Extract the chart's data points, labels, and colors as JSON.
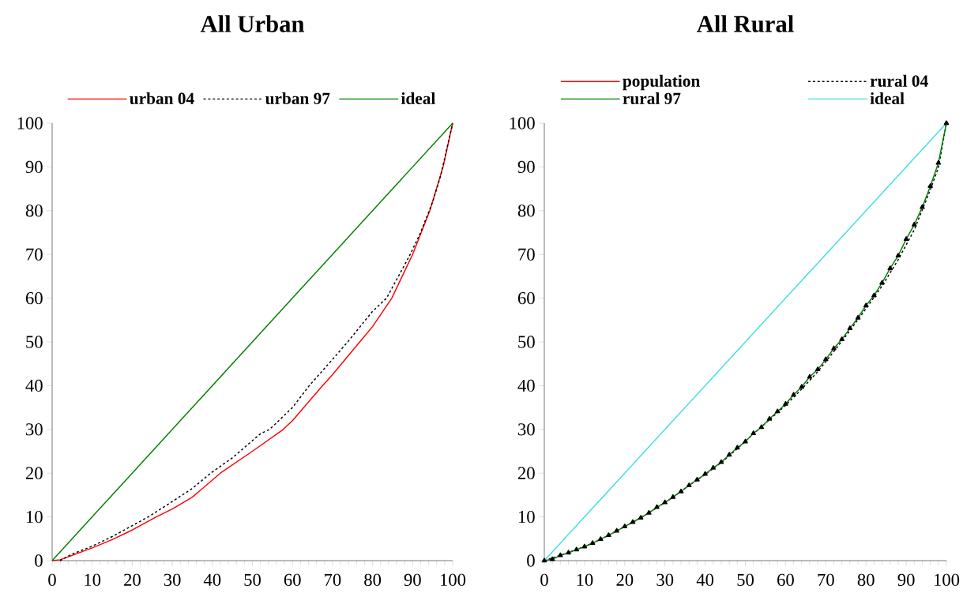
{
  "chart_data": [
    {
      "type": "line",
      "title": "All Urban",
      "legend": "top",
      "xlim": [
        0,
        100
      ],
      "ylim": [
        0,
        100
      ],
      "xticks": [
        0,
        10,
        20,
        30,
        40,
        50,
        60,
        70,
        80,
        90,
        100
      ],
      "yticks": [
        0,
        10,
        20,
        30,
        40,
        50,
        60,
        70,
        80,
        90,
        100
      ],
      "series": [
        {
          "name": "urban 04",
          "color": "#ff0000",
          "line_style": "solid",
          "x": [
            0,
            2,
            5,
            10,
            15,
            20,
            26,
            30,
            35,
            42,
            50,
            57.7,
            60,
            67.5,
            70,
            76.8,
            80,
            84.8,
            90,
            94.3,
            97.6,
            100
          ],
          "values": [
            0,
            0.2,
            1.2,
            2.9,
            4.8,
            7,
            10,
            11.8,
            14.5,
            20,
            25,
            30,
            32,
            40,
            42.5,
            50,
            53.5,
            60,
            70,
            80,
            90,
            100
          ]
        },
        {
          "name": "urban 97",
          "color": "#000000",
          "line_style": "dotted",
          "x": [
            2,
            5,
            10,
            15,
            20,
            24,
            30,
            35,
            39.6,
            45,
            52,
            54.3,
            60,
            64.2,
            70,
            73.8,
            80,
            83.5,
            89.4,
            92,
            95,
            97,
            100
          ],
          "values": [
            0,
            1.5,
            3.3,
            5.5,
            8,
            10,
            13.5,
            16.5,
            20,
            23.5,
            29,
            30,
            35,
            40,
            46,
            50,
            57,
            60,
            70,
            75,
            82,
            88,
            100
          ]
        },
        {
          "name": "ideal",
          "color": "#008000",
          "line_style": "solid",
          "x": [
            0,
            10,
            20,
            24,
            26,
            30,
            40,
            50,
            60,
            70,
            80,
            90,
            100
          ],
          "values": [
            0,
            10,
            20,
            24,
            26,
            30,
            40,
            50,
            60,
            70,
            80,
            90,
            100
          ]
        }
      ]
    },
    {
      "type": "line",
      "title": "All Rural",
      "legend": "top",
      "xlim": [
        0,
        100
      ],
      "ylim": [
        0,
        100
      ],
      "xticks": [
        0,
        10,
        20,
        30,
        40,
        50,
        60,
        70,
        80,
        90,
        100
      ],
      "yticks": [
        0,
        10,
        20,
        30,
        40,
        50,
        60,
        70,
        80,
        90,
        100
      ],
      "series": [
        {
          "name": "population",
          "color": "#ff0000",
          "line_style": "solid",
          "values": [
            null
          ]
        },
        {
          "name": "rural 04",
          "color": "#000000",
          "line_style": "dotted",
          "x": [
            0,
            4,
            8,
            12,
            16,
            20,
            24,
            28,
            32,
            36,
            40,
            44,
            48,
            52,
            56,
            60,
            64,
            68,
            72,
            76,
            80,
            84,
            88,
            92,
            96,
            98,
            100
          ],
          "values": [
            0,
            1.2,
            2.5,
            4,
            5.8,
            7.8,
            9.8,
            12.1,
            14.5,
            17.2,
            19.7,
            22.4,
            25.6,
            29,
            32.2,
            35.5,
            39.2,
            43.2,
            47.8,
            52.6,
            57.6,
            62.8,
            68.8,
            75.6,
            84.8,
            89.8,
            100
          ]
        },
        {
          "name": "rural 97",
          "color": "#008000",
          "line_style": "solid",
          "marker": "triangle",
          "x": [
            0,
            2,
            4,
            6,
            8,
            10,
            12,
            14,
            16,
            18,
            20,
            22,
            24,
            26,
            28,
            30,
            32,
            34,
            36,
            38,
            40,
            42,
            44,
            46,
            48,
            50,
            52,
            54,
            56,
            58,
            60,
            62,
            64,
            66,
            68,
            70,
            72,
            74,
            76,
            78,
            80,
            82,
            84,
            86,
            88,
            90,
            92,
            94,
            96,
            98,
            100
          ],
          "values": [
            0,
            0.3,
            1.2,
            1.8,
            2.5,
            3.2,
            4,
            4.9,
            5.8,
            6.8,
            7.8,
            8.8,
            9.8,
            10.9,
            12.2,
            13.3,
            14.5,
            15.8,
            17.2,
            18.5,
            19.8,
            21.2,
            22.5,
            24.2,
            25.8,
            27.2,
            29.1,
            30.5,
            32.4,
            34.1,
            35.8,
            37.9,
            39.7,
            42,
            43.7,
            46,
            48.5,
            50.6,
            53.1,
            55.5,
            58.3,
            60.6,
            63.5,
            66.8,
            69.7,
            73.5,
            76.8,
            80.8,
            85.6,
            90.9,
            100
          ]
        },
        {
          "name": "ideal",
          "color": "#40e0e0",
          "line_style": "solid",
          "x": [
            0,
            10,
            20,
            30,
            40,
            50,
            60,
            70,
            80,
            90,
            100
          ],
          "values": [
            0,
            10,
            20,
            30,
            40,
            50,
            60,
            70,
            80,
            90,
            100
          ]
        }
      ]
    }
  ]
}
